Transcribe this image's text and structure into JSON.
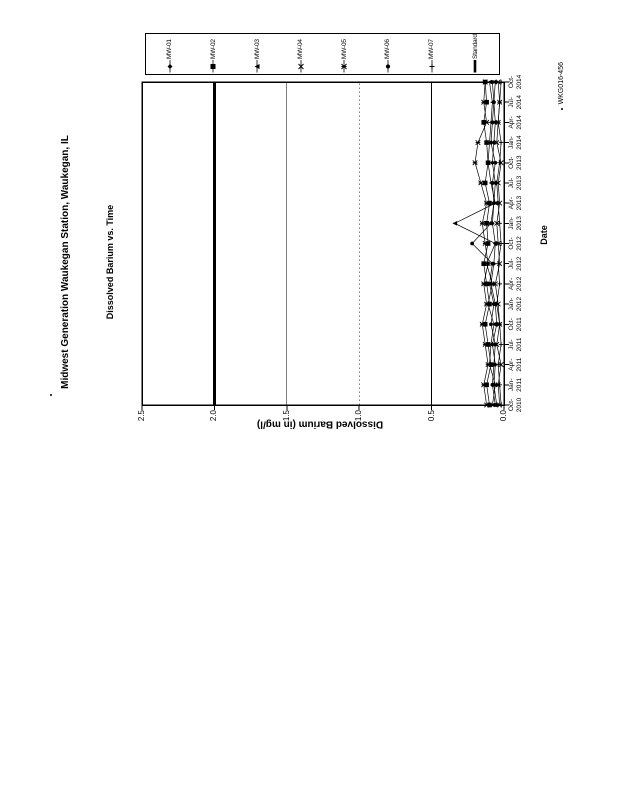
{
  "chart_data": {
    "type": "line",
    "title": "Midwest Generation Waukegan Station, Waukegan, IL",
    "subtitle": "Dissolved Barium vs. Time",
    "xlabel": "Date",
    "ylabel": "Dissolved Barium (in mg/l)",
    "ylim": [
      0.0,
      2.5
    ],
    "ytick_interval": 0.5,
    "ytick_labels": [
      "0.0",
      "0.5",
      "1.0",
      "1.5",
      "2.0",
      "2.5"
    ],
    "grid": "horizontal-major",
    "legend_position": "right",
    "page_orientation": "chart rotated 90deg CCW on portrait page",
    "categories": [
      "Oct-2010",
      "Jan-2011",
      "Apr-2011",
      "Jul-2011",
      "Oct-2011",
      "Jan-2012",
      "Apr-2012",
      "Jul-2012",
      "Oct-2012",
      "Jan-2013",
      "Apr-2013",
      "Jul-2013",
      "Oct-2013",
      "Jan-2014",
      "Apr-2014",
      "Jul-2014",
      "Oct-2014"
    ],
    "gridlines": [
      {
        "value": 0.5,
        "style": "solid"
      },
      {
        "value": 1.0,
        "style": "dotted"
      },
      {
        "value": 1.5,
        "style": "solid"
      }
    ],
    "standard_line": {
      "label": "Standard",
      "value": 2.0
    },
    "series": [
      {
        "name": "MW-01",
        "marker": "diamond",
        "values": [
          0.05,
          0.07,
          0.06,
          0.08,
          0.05,
          0.06,
          0.09,
          0.07,
          0.06,
          0.08,
          0.07,
          0.06,
          0.08,
          0.07,
          0.06,
          0.07,
          0.06
        ]
      },
      {
        "name": "MW-02",
        "marker": "square",
        "values": [
          0.1,
          0.12,
          0.09,
          0.11,
          0.13,
          0.1,
          0.12,
          0.14,
          0.11,
          0.12,
          0.1,
          0.13,
          0.11,
          0.12,
          0.14,
          0.12,
          0.13
        ]
      },
      {
        "name": "MW-03",
        "marker": "triangle",
        "values": [
          0.08,
          0.06,
          0.1,
          0.09,
          0.07,
          0.11,
          0.08,
          0.12,
          0.06,
          0.34,
          0.06,
          0.09,
          0.11,
          0.1,
          0.09,
          0.08,
          0.1
        ]
      },
      {
        "name": "MW-04",
        "marker": "x",
        "values": [
          0.03,
          0.04,
          0.02,
          0.05,
          0.03,
          0.04,
          0.06,
          0.03,
          0.04,
          0.05,
          0.03,
          0.04,
          0.02,
          0.05,
          0.04,
          0.03,
          0.04
        ]
      },
      {
        "name": "MW-05",
        "marker": "asterisk",
        "values": [
          0.12,
          0.14,
          0.11,
          0.13,
          0.15,
          0.12,
          0.14,
          0.11,
          0.13,
          0.15,
          0.12,
          0.16,
          0.2,
          0.18,
          0.12,
          0.14,
          0.13
        ]
      },
      {
        "name": "MW-06",
        "marker": "circle",
        "values": [
          0.06,
          0.08,
          0.07,
          0.06,
          0.09,
          0.07,
          0.1,
          0.08,
          0.22,
          0.09,
          0.07,
          0.08,
          0.06,
          0.09,
          0.08,
          0.07,
          0.08
        ]
      },
      {
        "name": "MW-07",
        "marker": "plus",
        "values": [
          0.02,
          0.03,
          0.04,
          0.02,
          0.03,
          0.05,
          0.03,
          0.04,
          0.02,
          0.03,
          0.04,
          0.05,
          0.03,
          0.02,
          0.04,
          0.03,
          0.02
        ]
      }
    ]
  },
  "footer": {
    "figure_number": "WKG016-456"
  },
  "colors": {
    "ink": "#000000",
    "paper": "#ffffff"
  }
}
